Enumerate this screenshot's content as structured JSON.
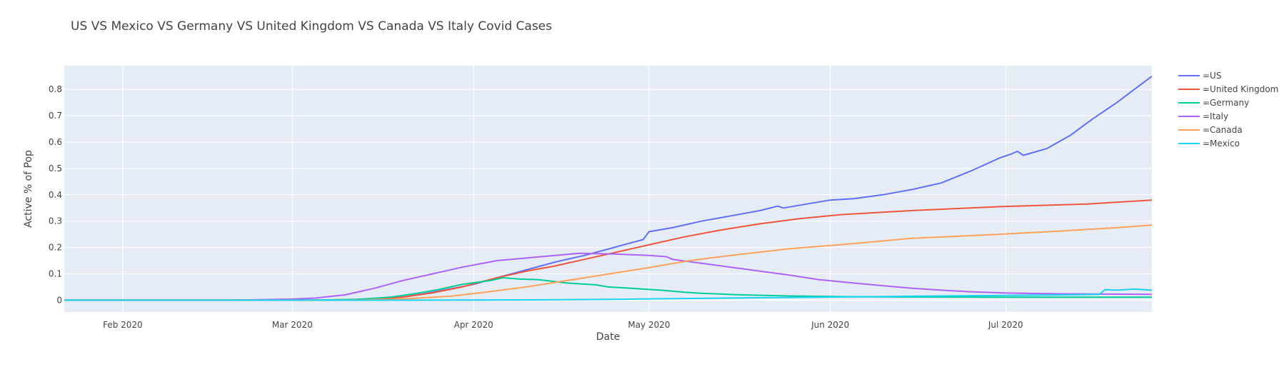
{
  "chart_data": {
    "type": "line",
    "title": "US VS Mexico VS Germany VS United Kingdom VS Canada VS Italy Covid Cases",
    "xlabel": "Date",
    "ylabel": "Active % of Pop",
    "xrange": [
      "2020-01-22",
      "2020-07-26"
    ],
    "ylim": [
      -0.045,
      0.89
    ],
    "x_ticks": [
      {
        "date": "2020-02-01",
        "label": "Feb 2020"
      },
      {
        "date": "2020-03-01",
        "label": "Mar 2020"
      },
      {
        "date": "2020-04-01",
        "label": "Apr 2020"
      },
      {
        "date": "2020-05-01",
        "label": "May 2020"
      },
      {
        "date": "2020-06-01",
        "label": "Jun 2020"
      },
      {
        "date": "2020-07-01",
        "label": "Jul 2020"
      }
    ],
    "y_ticks": [
      0,
      0.1,
      0.2,
      0.3,
      0.4,
      0.5,
      0.6,
      0.7,
      0.8
    ],
    "y_tick_labels": [
      "0",
      "0.1",
      "0.2",
      "0.3",
      "0.4",
      "0.5",
      "0.6",
      "0.7",
      "0.8"
    ],
    "grid": true,
    "legend_position": "right",
    "plot_background": "#e5ecf6",
    "series": [
      {
        "name": "=US",
        "color": "#636efa",
        "points": [
          [
            "2020-01-22",
            0
          ],
          [
            "2020-03-01",
            0.0
          ],
          [
            "2020-03-10",
            0.001
          ],
          [
            "2020-03-15",
            0.004
          ],
          [
            "2020-03-20",
            0.012
          ],
          [
            "2020-03-25",
            0.03
          ],
          [
            "2020-04-01",
            0.06
          ],
          [
            "2020-04-05",
            0.085
          ],
          [
            "2020-04-10",
            0.115
          ],
          [
            "2020-04-15",
            0.145
          ],
          [
            "2020-04-20",
            0.17
          ],
          [
            "2020-04-25",
            0.2
          ],
          [
            "2020-04-30",
            0.23
          ],
          [
            "2020-05-01",
            0.26
          ],
          [
            "2020-05-05",
            0.275
          ],
          [
            "2020-05-10",
            0.3
          ],
          [
            "2020-05-15",
            0.32
          ],
          [
            "2020-05-20",
            0.34
          ],
          [
            "2020-05-23",
            0.357
          ],
          [
            "2020-05-24",
            0.35
          ],
          [
            "2020-05-28",
            0.365
          ],
          [
            "2020-06-01",
            0.38
          ],
          [
            "2020-06-05",
            0.385
          ],
          [
            "2020-06-10",
            0.4
          ],
          [
            "2020-06-15",
            0.42
          ],
          [
            "2020-06-20",
            0.445
          ],
          [
            "2020-06-25",
            0.49
          ],
          [
            "2020-06-30",
            0.54
          ],
          [
            "2020-07-02",
            0.555
          ],
          [
            "2020-07-03",
            0.565
          ],
          [
            "2020-07-04",
            0.55
          ],
          [
            "2020-07-08",
            0.575
          ],
          [
            "2020-07-12",
            0.625
          ],
          [
            "2020-07-16",
            0.69
          ],
          [
            "2020-07-20",
            0.75
          ],
          [
            "2020-07-23",
            0.8
          ],
          [
            "2020-07-26",
            0.85
          ]
        ]
      },
      {
        "name": "=United Kingdom",
        "color": "#ef553b",
        "points": [
          [
            "2020-01-22",
            0
          ],
          [
            "2020-03-05",
            0.0
          ],
          [
            "2020-03-15",
            0.004
          ],
          [
            "2020-03-20",
            0.012
          ],
          [
            "2020-03-25",
            0.028
          ],
          [
            "2020-03-30",
            0.05
          ],
          [
            "2020-04-05",
            0.085
          ],
          [
            "2020-04-10",
            0.11
          ],
          [
            "2020-04-15",
            0.13
          ],
          [
            "2020-04-20",
            0.155
          ],
          [
            "2020-04-25",
            0.18
          ],
          [
            "2020-05-01",
            0.21
          ],
          [
            "2020-05-07",
            0.24
          ],
          [
            "2020-05-13",
            0.265
          ],
          [
            "2020-05-20",
            0.29
          ],
          [
            "2020-05-27",
            0.31
          ],
          [
            "2020-06-03",
            0.325
          ],
          [
            "2020-06-15",
            0.34
          ],
          [
            "2020-06-30",
            0.355
          ],
          [
            "2020-07-15",
            0.365
          ],
          [
            "2020-07-26",
            0.38
          ]
        ]
      },
      {
        "name": "=Germany",
        "color": "#00cc96",
        "points": [
          [
            "2020-01-22",
            0
          ],
          [
            "2020-03-05",
            0.0
          ],
          [
            "2020-03-12",
            0.003
          ],
          [
            "2020-03-18",
            0.012
          ],
          [
            "2020-03-22",
            0.025
          ],
          [
            "2020-03-26",
            0.04
          ],
          [
            "2020-03-30",
            0.06
          ],
          [
            "2020-04-04",
            0.075
          ],
          [
            "2020-04-06",
            0.085
          ],
          [
            "2020-04-09",
            0.08
          ],
          [
            "2020-04-12",
            0.078
          ],
          [
            "2020-04-17",
            0.065
          ],
          [
            "2020-04-22",
            0.058
          ],
          [
            "2020-04-24",
            0.05
          ],
          [
            "2020-04-28",
            0.045
          ],
          [
            "2020-05-03",
            0.038
          ],
          [
            "2020-05-07",
            0.03
          ],
          [
            "2020-05-10",
            0.026
          ],
          [
            "2020-05-17",
            0.02
          ],
          [
            "2020-05-25",
            0.016
          ],
          [
            "2020-06-05",
            0.013
          ],
          [
            "2020-06-20",
            0.012
          ],
          [
            "2020-07-05",
            0.011
          ],
          [
            "2020-07-26",
            0.011
          ]
        ]
      },
      {
        "name": "=Italy",
        "color": "#ab63fa",
        "points": [
          [
            "2020-01-22",
            0
          ],
          [
            "2020-02-20",
            0.0
          ],
          [
            "2020-03-01",
            0.004
          ],
          [
            "2020-03-05",
            0.008
          ],
          [
            "2020-03-10",
            0.02
          ],
          [
            "2020-03-15",
            0.045
          ],
          [
            "2020-03-20",
            0.075
          ],
          [
            "2020-03-25",
            0.1
          ],
          [
            "2020-03-30",
            0.125
          ],
          [
            "2020-04-05",
            0.15
          ],
          [
            "2020-04-10",
            0.16
          ],
          [
            "2020-04-15",
            0.17
          ],
          [
            "2020-04-19",
            0.178
          ],
          [
            "2020-04-25",
            0.175
          ],
          [
            "2020-05-01",
            0.17
          ],
          [
            "2020-05-04",
            0.165
          ],
          [
            "2020-05-05",
            0.155
          ],
          [
            "2020-05-10",
            0.14
          ],
          [
            "2020-05-15",
            0.125
          ],
          [
            "2020-05-20",
            0.11
          ],
          [
            "2020-05-25",
            0.095
          ],
          [
            "2020-05-30",
            0.078
          ],
          [
            "2020-06-05",
            0.065
          ],
          [
            "2020-06-10",
            0.055
          ],
          [
            "2020-06-15",
            0.045
          ],
          [
            "2020-06-20",
            0.038
          ],
          [
            "2020-06-25",
            0.032
          ],
          [
            "2020-07-01",
            0.027
          ],
          [
            "2020-07-10",
            0.024
          ],
          [
            "2020-07-26",
            0.022
          ]
        ]
      },
      {
        "name": "=Canada",
        "color": "#ffa15a",
        "points": [
          [
            "2020-01-22",
            0
          ],
          [
            "2020-03-10",
            0.0
          ],
          [
            "2020-03-20",
            0.005
          ],
          [
            "2020-03-28",
            0.015
          ],
          [
            "2020-04-03",
            0.03
          ],
          [
            "2020-04-10",
            0.05
          ],
          [
            "2020-04-20",
            0.085
          ],
          [
            "2020-04-30",
            0.12
          ],
          [
            "2020-05-08",
            0.15
          ],
          [
            "2020-05-15",
            0.17
          ],
          [
            "2020-05-25",
            0.195
          ],
          [
            "2020-06-05",
            0.215
          ],
          [
            "2020-06-15",
            0.235
          ],
          [
            "2020-06-30",
            0.25
          ],
          [
            "2020-07-10",
            0.262
          ],
          [
            "2020-07-20",
            0.275
          ],
          [
            "2020-07-26",
            0.285
          ]
        ]
      },
      {
        "name": "=Mexico",
        "color": "#19d3f3",
        "points": [
          [
            "2020-01-22",
            0
          ],
          [
            "2020-03-20",
            0.0
          ],
          [
            "2020-04-10",
            0.001
          ],
          [
            "2020-04-25",
            0.003
          ],
          [
            "2020-05-01",
            0.005
          ],
          [
            "2020-05-15",
            0.008
          ],
          [
            "2020-06-01",
            0.012
          ],
          [
            "2020-06-15",
            0.015
          ],
          [
            "2020-07-01",
            0.018
          ],
          [
            "2020-07-10",
            0.02
          ],
          [
            "2020-07-17",
            0.022
          ],
          [
            "2020-07-18",
            0.04
          ],
          [
            "2020-07-20",
            0.038
          ],
          [
            "2020-07-23",
            0.042
          ],
          [
            "2020-07-26",
            0.038
          ]
        ]
      }
    ]
  }
}
